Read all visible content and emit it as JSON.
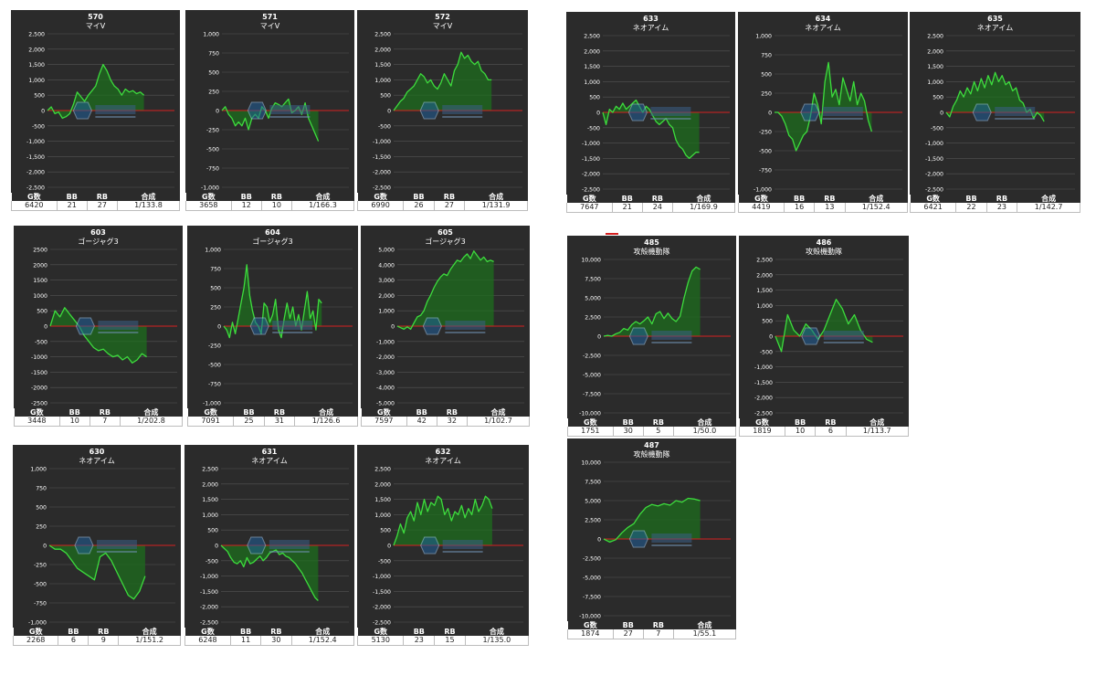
{
  "colors": {
    "panel": "#2b2b2b",
    "grid": "#555555",
    "line": "#3ddc3d",
    "fill": "#1e6e1e",
    "zero": "#d42020",
    "text": "#ffffff"
  },
  "stat_headers": [
    "G数",
    "BB",
    "RB",
    "合成"
  ],
  "chart_data": [
    {
      "type": "area",
      "number": "570",
      "machine": "マイV",
      "ylim": [
        -2500,
        2500
      ],
      "ticks": [
        2500,
        2000,
        1500,
        1000,
        500,
        0,
        -500,
        -1000,
        -1500,
        -2000,
        -2500
      ],
      "tick_labels": [
        "2,500",
        "2,000",
        "1,500",
        "1,000",
        "500",
        "0",
        "-500",
        "-1,000",
        "-1,500",
        "-2,000",
        "-2,500"
      ],
      "values": [
        0,
        120,
        -100,
        -50,
        -250,
        -200,
        -100,
        200,
        600,
        450,
        300,
        500,
        650,
        800,
        1200,
        1500,
        1300,
        1000,
        800,
        700,
        500,
        700,
        600,
        650,
        550,
        600,
        500
      ],
      "stats": {
        "games": "6420",
        "bb": "21",
        "rb": "27",
        "combined": "1/133.8"
      }
    },
    {
      "type": "area",
      "number": "571",
      "machine": "マイV",
      "ylim": [
        -1000,
        1000
      ],
      "ticks": [
        1000,
        750,
        500,
        250,
        0,
        -250,
        -500,
        -750,
        -1000
      ],
      "tick_labels": [
        "1,000",
        "750",
        "500",
        "250",
        "0",
        "-250",
        "-500",
        "-750",
        "-1,000"
      ],
      "values": [
        0,
        50,
        -50,
        -100,
        -200,
        -150,
        -200,
        -100,
        -250,
        -100,
        -50,
        -100,
        50,
        0,
        -100,
        30,
        100,
        80,
        50,
        100,
        150,
        -30,
        0,
        50,
        -50,
        100,
        -100,
        -200,
        -300,
        -400
      ],
      "stats": {
        "games": "3658",
        "bb": "12",
        "rb": "10",
        "combined": "1/166.3"
      }
    },
    {
      "type": "area",
      "number": "572",
      "machine": "マイV",
      "ylim": [
        -2500,
        2500
      ],
      "ticks": [
        2500,
        2000,
        1500,
        1000,
        500,
        0,
        -500,
        -1000,
        -1500,
        -2000,
        -2500
      ],
      "tick_labels": [
        "2,500",
        "2,000",
        "1,500",
        "1,000",
        "500",
        "0",
        "-500",
        "-1,000",
        "-1,500",
        "-2,000",
        "-2,500"
      ],
      "values": [
        0,
        150,
        300,
        400,
        600,
        700,
        800,
        1000,
        1200,
        1100,
        900,
        1000,
        800,
        700,
        900,
        1200,
        1000,
        800,
        1300,
        1500,
        1900,
        1700,
        1800,
        1600,
        1500,
        1600,
        1300,
        1200,
        1000,
        1000
      ],
      "stats": {
        "games": "6990",
        "bb": "26",
        "rb": "27",
        "combined": "1/131.9"
      }
    },
    {
      "type": "area",
      "number": "633",
      "machine": "ネオアイム",
      "ylim": [
        -2500,
        2500
      ],
      "ticks": [
        2500,
        2000,
        1500,
        1000,
        500,
        0,
        -500,
        -1000,
        -1500,
        -2000,
        -2500
      ],
      "tick_labels": [
        "2,500",
        "2,000",
        "1,500",
        "1,000",
        "500",
        "0",
        "-500",
        "-1,000",
        "-1,500",
        "-2,000",
        "-2,500"
      ],
      "values": [
        0,
        -400,
        100,
        0,
        200,
        100,
        300,
        100,
        200,
        300,
        400,
        200,
        0,
        200,
        100,
        -100,
        -300,
        -400,
        -300,
        -200,
        -400,
        -500,
        -900,
        -1100,
        -1200,
        -1400,
        -1500,
        -1400,
        -1300,
        -1300
      ],
      "stats": {
        "games": "7647",
        "bb": "21",
        "rb": "24",
        "combined": "1/169.9"
      }
    },
    {
      "type": "area",
      "number": "634",
      "machine": "ネオアイム",
      "ylim": [
        -1000,
        1000
      ],
      "ticks": [
        1000,
        750,
        500,
        250,
        0,
        -250,
        -500,
        -750,
        -1000
      ],
      "tick_labels": [
        "1,000",
        "750",
        "500",
        "250",
        "0",
        "-250",
        "-500",
        "-750",
        "-1,000"
      ],
      "values": [
        0,
        0,
        -50,
        -150,
        -300,
        -350,
        -500,
        -400,
        -300,
        -250,
        -50,
        250,
        100,
        -150,
        400,
        650,
        200,
        300,
        100,
        450,
        300,
        150,
        400,
        100,
        250,
        150,
        -100,
        -250
      ],
      "stats": {
        "games": "4419",
        "bb": "16",
        "rb": "13",
        "combined": "1/152.4"
      }
    },
    {
      "type": "area",
      "number": "635",
      "machine": "ネオアイム",
      "ylim": [
        -2500,
        2500
      ],
      "ticks": [
        2500,
        2000,
        1500,
        1000,
        500,
        0,
        -500,
        -1000,
        -1500,
        -2000,
        -2500
      ],
      "tick_labels": [
        "2,500",
        "2,000",
        "1,500",
        "1,000",
        "500",
        "0",
        "-500",
        "-1,000",
        "-1,500",
        "-2,000",
        "-2,500"
      ],
      "values": [
        0,
        -150,
        200,
        400,
        700,
        500,
        800,
        600,
        1000,
        700,
        1100,
        800,
        1200,
        900,
        1300,
        1000,
        1200,
        900,
        1000,
        700,
        800,
        400,
        300,
        0,
        100,
        -200,
        0,
        -100,
        -300
      ],
      "stats": {
        "games": "6421",
        "bb": "22",
        "rb": "23",
        "combined": "1/142.7"
      }
    },
    {
      "type": "area",
      "number": "603",
      "machine": "ゴージャグ3",
      "ylim": [
        -2500,
        2500
      ],
      "ticks": [
        2500,
        2000,
        1500,
        1000,
        500,
        0,
        -500,
        -1000,
        -1500,
        -2000,
        -2500
      ],
      "tick_labels": [
        "2500",
        "2000",
        "1500",
        "1000",
        "500",
        "0",
        "-500",
        "-1000",
        "-1500",
        "-2000",
        "-2500"
      ],
      "values": [
        0,
        500,
        300,
        600,
        400,
        200,
        0,
        -300,
        -500,
        -700,
        -800,
        -750,
        -900,
        -1000,
        -950,
        -1100,
        -1000,
        -1200,
        -1100,
        -900,
        -1000
      ],
      "stats": {
        "games": "3448",
        "bb": "10",
        "rb": "7",
        "combined": "1/202.8"
      }
    },
    {
      "type": "area",
      "number": "604",
      "machine": "ゴージャグ3",
      "ylim": [
        -1000,
        1000
      ],
      "ticks": [
        1000,
        750,
        500,
        250,
        0,
        -250,
        -500,
        -750,
        -1000
      ],
      "tick_labels": [
        "1,000",
        "750",
        "500",
        "250",
        "0",
        "-250",
        "-500",
        "-750",
        "-1,000"
      ],
      "values": [
        0,
        -50,
        -150,
        50,
        -100,
        100,
        300,
        500,
        800,
        400,
        200,
        50,
        0,
        -100,
        300,
        250,
        50,
        150,
        350,
        -50,
        -150,
        100,
        300,
        100,
        250,
        0,
        150,
        -50,
        200,
        450,
        100,
        200,
        -50,
        350,
        300
      ],
      "stats": {
        "games": "7091",
        "bb": "25",
        "rb": "31",
        "combined": "1/126.6"
      }
    },
    {
      "type": "area",
      "number": "605",
      "machine": "ゴージャグ3",
      "ylim": [
        -5000,
        5000
      ],
      "ticks": [
        5000,
        4000,
        3000,
        2000,
        1000,
        0,
        -1000,
        -2000,
        -3000,
        -4000,
        -5000
      ],
      "tick_labels": [
        "5,000",
        "4,000",
        "3,000",
        "2,000",
        "1,000",
        "0",
        "-1,000",
        "-2,000",
        "-3,000",
        "-4,000",
        "-5,000"
      ],
      "values": [
        0,
        -100,
        -200,
        -50,
        -200,
        200,
        600,
        700,
        1000,
        1600,
        2000,
        2500,
        2900,
        3200,
        3400,
        3300,
        3700,
        4000,
        4300,
        4200,
        4500,
        4700,
        4400,
        4900,
        4600,
        4300,
        4500,
        4200,
        4300,
        4200
      ],
      "stats": {
        "games": "7597",
        "bb": "42",
        "rb": "32",
        "combined": "1/102.7"
      }
    },
    {
      "type": "area",
      "number": "485",
      "machine": "攻殻機動隊",
      "ylim": [
        -10000,
        10000
      ],
      "ticks": [
        10000,
        7500,
        5000,
        2500,
        0,
        -2500,
        -5000,
        -7500,
        -10000
      ],
      "tick_labels": [
        "10,000",
        "7,500",
        "5,000",
        "2,500",
        "0",
        "-2,500",
        "-5,000",
        "-7,500",
        "-10,000"
      ],
      "values": [
        0,
        100,
        0,
        300,
        500,
        1000,
        800,
        1500,
        1900,
        1600,
        2000,
        2500,
        1600,
        2900,
        3200,
        2300,
        3000,
        2300,
        1900,
        2600,
        5000,
        7000,
        8500,
        9000,
        8700
      ],
      "stats": {
        "games": "1751",
        "bb": "30",
        "rb": "5",
        "combined": "1/50.0"
      }
    },
    {
      "type": "area",
      "number": "486",
      "machine": "攻殻機動隊",
      "ylim": [
        -2500,
        2500
      ],
      "ticks": [
        2500,
        2000,
        1500,
        1000,
        500,
        0,
        -500,
        -1000,
        -1500,
        -2000,
        -2500
      ],
      "tick_labels": [
        "2,500",
        "2,000",
        "1,500",
        "1,000",
        "500",
        "0",
        "-500",
        "-1,000",
        "-1,500",
        "-2,000",
        "-2,500"
      ],
      "values": [
        0,
        -500,
        700,
        200,
        0,
        400,
        200,
        -100,
        200,
        700,
        1200,
        900,
        400,
        700,
        200,
        -100,
        -200
      ],
      "stats": {
        "games": "1819",
        "bb": "10",
        "rb": "6",
        "combined": "1/113.7"
      }
    },
    {
      "type": "area",
      "number": "630",
      "machine": "ネオアイム",
      "ylim": [
        -1000,
        1000
      ],
      "ticks": [
        1000,
        750,
        500,
        250,
        0,
        -250,
        -500,
        -750,
        -1000
      ],
      "tick_labels": [
        "1,000",
        "750",
        "500",
        "250",
        "0",
        "-250",
        "-500",
        "-750",
        "-1,000"
      ],
      "values": [
        0,
        -50,
        -50,
        -100,
        -200,
        -300,
        -350,
        -400,
        -450,
        -150,
        -100,
        -200,
        -350,
        -500,
        -650,
        -700,
        -600,
        -400
      ],
      "stats": {
        "games": "2268",
        "bb": "6",
        "rb": "9",
        "combined": "1/151.2"
      }
    },
    {
      "type": "area",
      "number": "631",
      "machine": "ネオアイム",
      "ylim": [
        -2500,
        2500
      ],
      "ticks": [
        2500,
        2000,
        1500,
        1000,
        500,
        0,
        -500,
        -1000,
        -1500,
        -2000,
        -2500
      ],
      "tick_labels": [
        "2,500",
        "2,000",
        "1,500",
        "1,000",
        "500",
        "0",
        "-500",
        "-1,000",
        "-1,500",
        "-2,000",
        "-2,500"
      ],
      "values": [
        0,
        -100,
        -200,
        -400,
        -550,
        -600,
        -500,
        -700,
        -400,
        -600,
        -550,
        -450,
        -350,
        -500,
        -400,
        -250,
        -200,
        -150,
        -300,
        -250,
        -350,
        -400,
        -500,
        -600,
        -750,
        -900,
        -1100,
        -1300,
        -1500,
        -1700,
        -1800
      ],
      "stats": {
        "games": "6248",
        "bb": "11",
        "rb": "30",
        "combined": "1/152.4"
      }
    },
    {
      "type": "area",
      "number": "632",
      "machine": "ネオアイム",
      "ylim": [
        -2500,
        2500
      ],
      "ticks": [
        2500,
        2000,
        1500,
        1000,
        500,
        0,
        -500,
        -1000,
        -1500,
        -2000,
        -2500
      ],
      "tick_labels": [
        "2,500",
        "2,000",
        "1,500",
        "1,000",
        "500",
        "0",
        "-500",
        "-1,000",
        "-1,500",
        "-2,000",
        "-2,500"
      ],
      "values": [
        0,
        300,
        700,
        400,
        900,
        1100,
        800,
        1400,
        1000,
        1500,
        1100,
        1400,
        1300,
        1600,
        1500,
        1000,
        1200,
        800,
        1100,
        1000,
        1300,
        900,
        1200,
        1000,
        1500,
        1100,
        1300,
        1600,
        1500,
        1200
      ],
      "stats": {
        "games": "5130",
        "bb": "23",
        "rb": "15",
        "combined": "1/135.0"
      }
    },
    {
      "type": "area",
      "number": "487",
      "machine": "攻殻機動隊",
      "ylim": [
        -10000,
        10000
      ],
      "ticks": [
        10000,
        7500,
        5000,
        2500,
        0,
        -2500,
        -5000,
        -7500,
        -10000
      ],
      "tick_labels": [
        "10,000",
        "7,500",
        "5,000",
        "2,500",
        "0",
        "-2,500",
        "-5,000",
        "-7,500",
        "-10,000"
      ],
      "values": [
        0,
        -400,
        -100,
        800,
        1500,
        2000,
        3200,
        4100,
        4500,
        4300,
        4600,
        4400,
        5000,
        4800,
        5300,
        5200,
        5000
      ],
      "stats": {
        "games": "1874",
        "bb": "27",
        "rb": "7",
        "combined": "1/55.1"
      }
    }
  ]
}
